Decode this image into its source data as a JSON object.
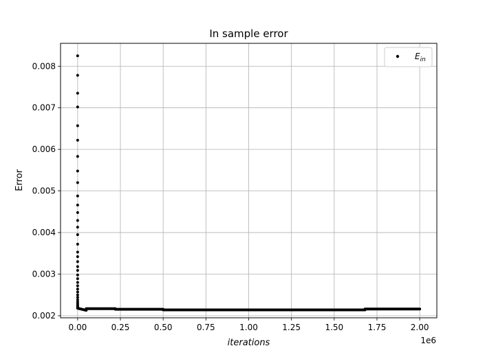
{
  "chart_data": {
    "type": "scatter",
    "title": "In sample error",
    "xlabel": "iterations",
    "ylabel": "Error",
    "x_offset_label": "1e6",
    "xlim": [
      -0.1,
      2.1
    ],
    "ylim": [
      0.00195,
      0.00855
    ],
    "xticks": [
      0.0,
      0.25,
      0.5,
      0.75,
      1.0,
      1.25,
      1.5,
      1.75,
      2.0
    ],
    "xtick_labels": [
      "0.00",
      "0.25",
      "0.50",
      "0.75",
      "1.00",
      "1.25",
      "1.50",
      "1.75",
      "2.00"
    ],
    "yticks": [
      0.002,
      0.003,
      0.004,
      0.005,
      0.006,
      0.007,
      0.008
    ],
    "ytick_labels": [
      "0.002",
      "0.003",
      "0.004",
      "0.005",
      "0.006",
      "0.007",
      "0.008"
    ],
    "grid": true,
    "legend": {
      "placement": "top-right",
      "label": "E",
      "label_sub": "in"
    },
    "marker_color": "#000000",
    "series": [
      {
        "name": "E_in",
        "head_x": 0.0,
        "head_y": [
          0.00825,
          0.00778,
          0.00735,
          0.00702,
          0.00657,
          0.00622,
          0.00583,
          0.00548,
          0.0052,
          0.00488,
          0.00466,
          0.00448,
          0.00429,
          0.00413,
          0.00395,
          0.00372,
          0.00353,
          0.00342,
          0.0033,
          0.00318,
          0.00309,
          0.00298,
          0.00289,
          0.0028,
          0.00272,
          0.00264,
          0.00257,
          0.0025,
          0.00244,
          0.00238,
          0.00233,
          0.00229,
          0.00226,
          0.00223,
          0.00221,
          0.00219,
          0.00218
        ],
        "tail": [
          {
            "x_start": 0.005,
            "x_end": 0.05,
            "y_start": 0.002175,
            "y_end": 0.00213
          },
          {
            "x_start": 0.05,
            "x_end": 0.22,
            "y_start": 0.00217,
            "y_end": 0.00217
          },
          {
            "x_start": 0.22,
            "x_end": 0.5,
            "y_start": 0.002155,
            "y_end": 0.002155
          },
          {
            "x_start": 0.5,
            "x_end": 1.68,
            "y_start": 0.00214,
            "y_end": 0.00214
          },
          {
            "x_start": 1.68,
            "x_end": 2.0,
            "y_start": 0.00216,
            "y_end": 0.00216
          }
        ]
      }
    ]
  }
}
